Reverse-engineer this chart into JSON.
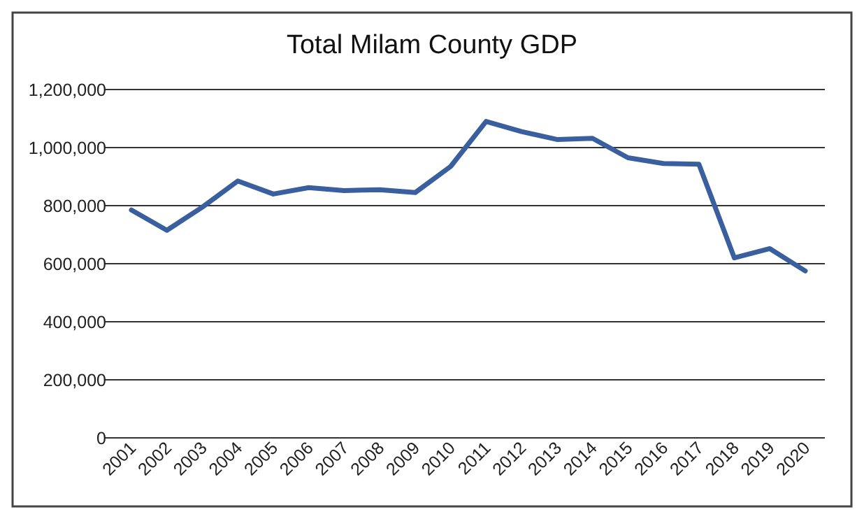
{
  "chart_data": {
    "type": "line",
    "title": "Total Milam County GDP",
    "categories": [
      "2001",
      "2002",
      "2003",
      "2004",
      "2005",
      "2006",
      "2007",
      "2008",
      "2009",
      "2010",
      "2011",
      "2012",
      "2013",
      "2014",
      "2015",
      "2016",
      "2017",
      "2018",
      "2019",
      "2020"
    ],
    "series": [
      {
        "color": "#3a5f9e",
        "values": [
          785000,
          715000,
          795000,
          885000,
          840000,
          862000,
          852000,
          855000,
          845000,
          935000,
          1090000,
          1055000,
          1028000,
          1032000,
          965000,
          945000,
          943000,
          620000,
          652000,
          575000
        ]
      }
    ],
    "ylim": [
      0,
      1200000
    ],
    "yticks": [
      {
        "value": 0,
        "label": "0"
      },
      {
        "value": 200000,
        "label": "200,000"
      },
      {
        "value": 400000,
        "label": "400,000"
      },
      {
        "value": 600000,
        "label": "600,000"
      },
      {
        "value": 800000,
        "label": "800,000"
      },
      {
        "value": 1000000,
        "label": "1,000,000"
      },
      {
        "value": 1200000,
        "label": "1,200,000"
      }
    ],
    "grid": "y",
    "marker": "none",
    "line_style": "solid"
  }
}
